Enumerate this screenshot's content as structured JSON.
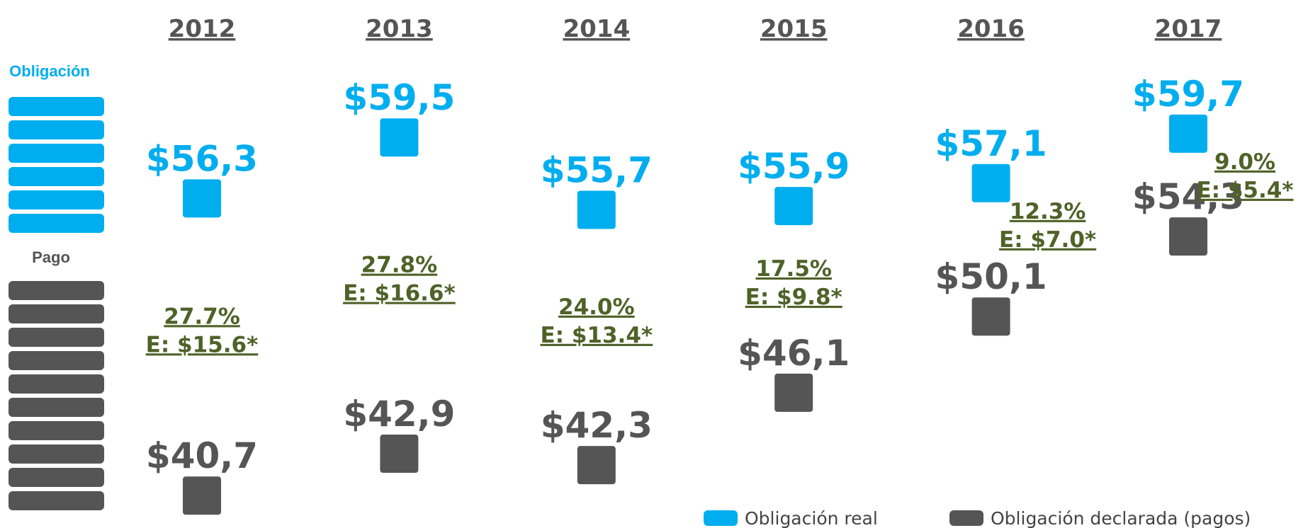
{
  "chart_data": {
    "type": "dot",
    "categories": [
      "2012",
      "2013",
      "2014",
      "2015",
      "2016",
      "2017"
    ],
    "series": [
      {
        "name": "Obligación real",
        "color": "#00aeef",
        "values": [
          56.3,
          59.5,
          55.7,
          55.9,
          57.1,
          59.7
        ],
        "value_labels": [
          "$56,3",
          "$59,5",
          "$55,7",
          "$55,9",
          "$57,1",
          "$59,7"
        ]
      },
      {
        "name": "Obligación declarada (pagos)",
        "color": "#555555",
        "values": [
          40.7,
          42.9,
          42.3,
          46.1,
          50.1,
          54.3
        ],
        "value_labels": [
          "$40,7",
          "$42,9",
          "$42,3",
          "$46,1",
          "$50,1",
          "$54,3"
        ]
      }
    ],
    "gap_percent_labels": [
      "27.7%",
      "27.8%",
      "24.0%",
      "17.5%",
      "12.3%",
      "9.0%"
    ],
    "gap_estimate_labels": [
      "E: $15.6*",
      "E: $16.6*",
      "E: $13.4*",
      "E: $9.8*",
      "E: $7.0*",
      "E: $5.4*"
    ],
    "gap_color": "#4f6228",
    "ylim": [
      39,
      63
    ],
    "side_legend": {
      "top_label": "Obligación",
      "bottom_label": "Pago"
    }
  }
}
